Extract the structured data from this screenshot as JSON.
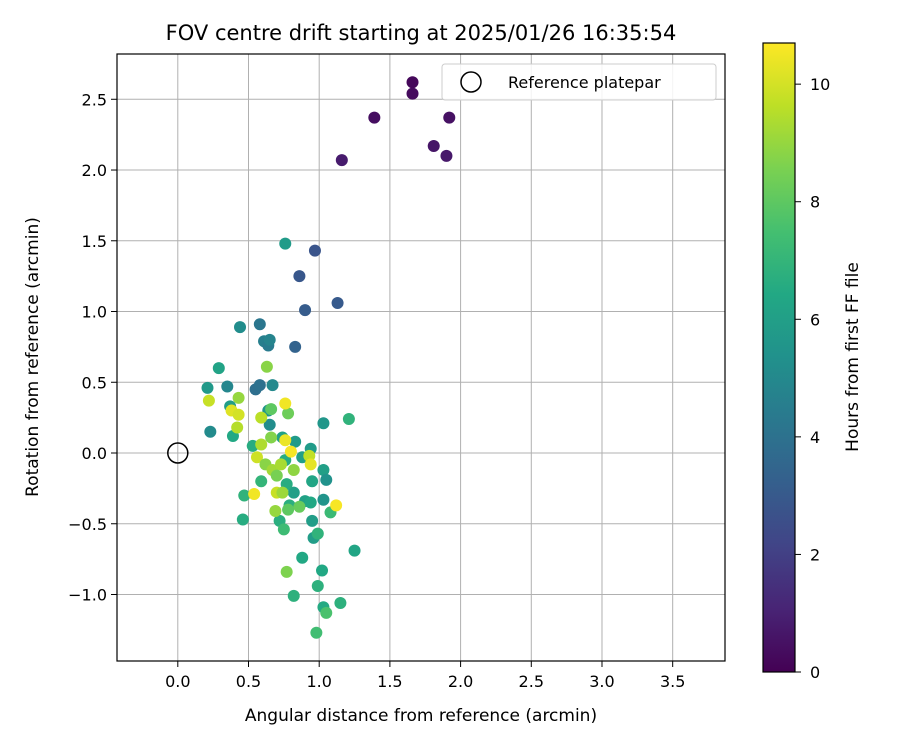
{
  "chart_data": {
    "type": "scatter",
    "title": "FOV centre drift starting at 2025/01/26 16:35:54",
    "xlabel": "Angular distance from reference (arcmin)",
    "ylabel": "Rotation from reference (arcmin)",
    "xlim": [
      -0.43,
      3.87
    ],
    "ylim": [
      -1.47,
      2.82
    ],
    "xticks": [
      0.0,
      0.5,
      1.0,
      1.5,
      2.0,
      2.5,
      3.0,
      3.5
    ],
    "xtick_labels": [
      "0.0",
      "0.5",
      "1.0",
      "1.5",
      "2.0",
      "2.5",
      "3.0",
      "3.5"
    ],
    "yticks": [
      -1.0,
      -0.5,
      0.0,
      0.5,
      1.0,
      1.5,
      2.0,
      2.5
    ],
    "ytick_labels": [
      "−1.0",
      "−0.5",
      "0.0",
      "0.5",
      "1.0",
      "1.5",
      "2.0",
      "2.5"
    ],
    "grid": true,
    "legend": {
      "position": "top-right",
      "label": "Reference platepar",
      "marker": "open circle"
    },
    "reference_point": {
      "x": 0.0,
      "y": 0.0
    },
    "colorbar": {
      "label": "Hours from first FF file",
      "colormap": "viridis",
      "range": [
        0,
        10.7
      ],
      "ticks": [
        0,
        2,
        4,
        6,
        8,
        10
      ],
      "tick_labels": [
        "0",
        "2",
        "4",
        "6",
        "8",
        "10"
      ]
    },
    "series": [
      {
        "points": [
          {
            "x": 1.66,
            "y": 2.62,
            "h": 0.2
          },
          {
            "x": 1.66,
            "y": 2.54,
            "h": 0.3
          },
          {
            "x": 1.39,
            "y": 2.37,
            "h": 0.4
          },
          {
            "x": 1.92,
            "y": 2.37,
            "h": 0.5
          },
          {
            "x": 1.81,
            "y": 2.17,
            "h": 0.6
          },
          {
            "x": 1.9,
            "y": 2.1,
            "h": 0.7
          },
          {
            "x": 1.16,
            "y": 2.07,
            "h": 0.8
          },
          {
            "x": 0.97,
            "y": 1.43,
            "h": 2.8
          },
          {
            "x": 0.86,
            "y": 1.25,
            "h": 2.9
          },
          {
            "x": 1.13,
            "y": 1.06,
            "h": 3.0
          },
          {
            "x": 0.9,
            "y": 1.01,
            "h": 3.1
          },
          {
            "x": 0.83,
            "y": 0.75,
            "h": 3.4
          },
          {
            "x": 0.58,
            "y": 0.91,
            "h": 4.2
          },
          {
            "x": 0.61,
            "y": 0.79,
            "h": 4.6
          },
          {
            "x": 0.64,
            "y": 0.76,
            "h": 4.4
          },
          {
            "x": 0.65,
            "y": 0.8,
            "h": 4.8
          },
          {
            "x": 0.44,
            "y": 0.89,
            "h": 5.2
          },
          {
            "x": 0.55,
            "y": 0.45,
            "h": 3.9
          },
          {
            "x": 0.58,
            "y": 0.48,
            "h": 4.0
          },
          {
            "x": 0.67,
            "y": 0.48,
            "h": 5.0
          },
          {
            "x": 0.35,
            "y": 0.47,
            "h": 4.9
          },
          {
            "x": 0.76,
            "y": 1.48,
            "h": 5.8
          },
          {
            "x": 0.29,
            "y": 0.6,
            "h": 6.2
          },
          {
            "x": 0.21,
            "y": 0.46,
            "h": 5.7
          },
          {
            "x": 0.23,
            "y": 0.15,
            "h": 5.1
          },
          {
            "x": 0.37,
            "y": 0.33,
            "h": 5.9
          },
          {
            "x": 0.39,
            "y": 0.12,
            "h": 6.4
          },
          {
            "x": 0.65,
            "y": 0.2,
            "h": 5.2
          },
          {
            "x": 0.64,
            "y": 0.3,
            "h": 5.6
          },
          {
            "x": 1.03,
            "y": 0.21,
            "h": 5.6
          },
          {
            "x": 1.21,
            "y": 0.24,
            "h": 6.9
          },
          {
            "x": 0.53,
            "y": 0.05,
            "h": 6.6
          },
          {
            "x": 0.83,
            "y": 0.08,
            "h": 5.8
          },
          {
            "x": 0.94,
            "y": 0.03,
            "h": 5.8
          },
          {
            "x": 0.74,
            "y": 0.11,
            "h": 6.1
          },
          {
            "x": 0.76,
            "y": -0.05,
            "h": 6.6
          },
          {
            "x": 0.88,
            "y": -0.03,
            "h": 6.0
          },
          {
            "x": 1.03,
            "y": -0.12,
            "h": 6.0
          },
          {
            "x": 1.05,
            "y": -0.19,
            "h": 5.4
          },
          {
            "x": 0.95,
            "y": -0.2,
            "h": 6.3
          },
          {
            "x": 0.82,
            "y": -0.28,
            "h": 6.0
          },
          {
            "x": 0.77,
            "y": -0.22,
            "h": 6.6
          },
          {
            "x": 0.9,
            "y": -0.34,
            "h": 6.1
          },
          {
            "x": 0.94,
            "y": -0.35,
            "h": 6.4
          },
          {
            "x": 1.03,
            "y": -0.33,
            "h": 5.5
          },
          {
            "x": 0.79,
            "y": -0.37,
            "h": 6.7
          },
          {
            "x": 1.08,
            "y": -0.42,
            "h": 7.2
          },
          {
            "x": 0.95,
            "y": -0.48,
            "h": 5.9
          },
          {
            "x": 0.72,
            "y": -0.48,
            "h": 6.7
          },
          {
            "x": 0.75,
            "y": -0.54,
            "h": 7.3
          },
          {
            "x": 0.47,
            "y": -0.3,
            "h": 6.9
          },
          {
            "x": 0.46,
            "y": -0.47,
            "h": 6.6
          },
          {
            "x": 0.59,
            "y": -0.2,
            "h": 7.0
          },
          {
            "x": 0.96,
            "y": -0.6,
            "h": 5.9
          },
          {
            "x": 0.99,
            "y": -0.57,
            "h": 6.9
          },
          {
            "x": 1.25,
            "y": -0.69,
            "h": 6.3
          },
          {
            "x": 0.88,
            "y": -0.74,
            "h": 6.4
          },
          {
            "x": 1.02,
            "y": -0.83,
            "h": 6.4
          },
          {
            "x": 0.82,
            "y": -1.01,
            "h": 6.8
          },
          {
            "x": 0.99,
            "y": -0.94,
            "h": 6.8
          },
          {
            "x": 1.03,
            "y": -1.09,
            "h": 6.5
          },
          {
            "x": 1.15,
            "y": -1.06,
            "h": 6.8
          },
          {
            "x": 1.05,
            "y": -1.13,
            "h": 7.6
          },
          {
            "x": 0.98,
            "y": -1.27,
            "h": 7.4
          },
          {
            "x": 0.77,
            "y": -0.84,
            "h": 8.6
          },
          {
            "x": 0.63,
            "y": 0.61,
            "h": 8.8
          },
          {
            "x": 0.66,
            "y": 0.31,
            "h": 8.0
          },
          {
            "x": 0.78,
            "y": 0.28,
            "h": 8.3
          },
          {
            "x": 0.43,
            "y": 0.39,
            "h": 9.0
          },
          {
            "x": 0.22,
            "y": 0.37,
            "h": 9.8
          },
          {
            "x": 0.38,
            "y": 0.3,
            "h": 10.2
          },
          {
            "x": 0.43,
            "y": 0.27,
            "h": 10.0
          },
          {
            "x": 0.42,
            "y": 0.18,
            "h": 9.5
          },
          {
            "x": 0.59,
            "y": 0.25,
            "h": 9.6
          },
          {
            "x": 0.76,
            "y": 0.35,
            "h": 10.5
          },
          {
            "x": 0.66,
            "y": 0.11,
            "h": 8.7
          },
          {
            "x": 0.59,
            "y": 0.06,
            "h": 9.4
          },
          {
            "x": 0.76,
            "y": 0.09,
            "h": 10.4
          },
          {
            "x": 0.8,
            "y": 0.01,
            "h": 10.6
          },
          {
            "x": 0.56,
            "y": -0.03,
            "h": 9.9
          },
          {
            "x": 0.62,
            "y": -0.08,
            "h": 8.8
          },
          {
            "x": 0.67,
            "y": -0.12,
            "h": 9.2
          },
          {
            "x": 0.7,
            "y": -0.16,
            "h": 8.5
          },
          {
            "x": 0.73,
            "y": -0.08,
            "h": 9.3
          },
          {
            "x": 0.82,
            "y": -0.12,
            "h": 8.9
          },
          {
            "x": 0.93,
            "y": -0.02,
            "h": 9.7
          },
          {
            "x": 0.94,
            "y": -0.08,
            "h": 10.3
          },
          {
            "x": 0.7,
            "y": -0.28,
            "h": 9.8
          },
          {
            "x": 0.74,
            "y": -0.28,
            "h": 9.1
          },
          {
            "x": 0.54,
            "y": -0.29,
            "h": 10.5
          },
          {
            "x": 0.86,
            "y": -0.38,
            "h": 8.2
          },
          {
            "x": 0.78,
            "y": -0.4,
            "h": 8.0
          },
          {
            "x": 0.69,
            "y": -0.41,
            "h": 9.0
          },
          {
            "x": 1.12,
            "y": -0.37,
            "h": 10.6
          }
        ]
      }
    ]
  }
}
